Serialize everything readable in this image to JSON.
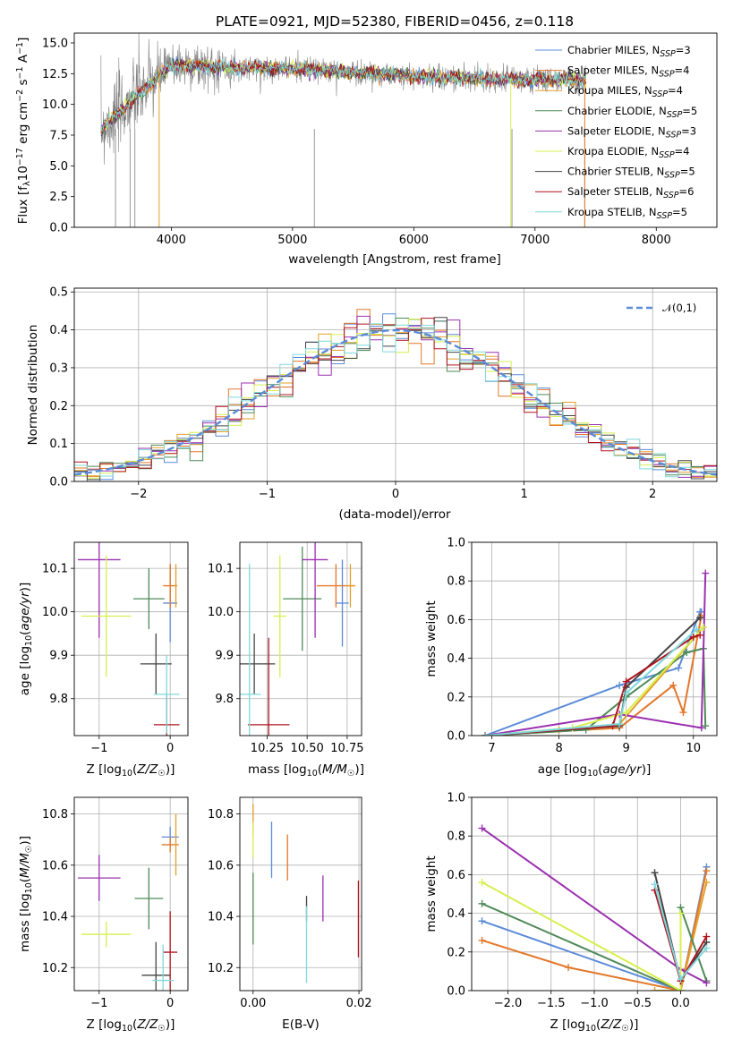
{
  "colors": {
    "chabrier_miles": "#5b8bd9",
    "salpeter_miles": "#e3772a",
    "kroupa_miles": "#e39f2a",
    "chabrier_elodie": "#4f8a58",
    "salpeter_elodie": "#9b30b0",
    "kroupa_elodie": "#d8ef4e",
    "chabrier_stelib": "#444444",
    "salpeter_stelib": "#b0141e",
    "kroupa_stelib": "#7fd8dc",
    "spec_gray": "#808080",
    "grid": "#b0b0b0",
    "normal": "#5b8bd9"
  },
  "chart_data": [
    {
      "id": "spectrum",
      "type": "line",
      "title": "PLATE=0921, MJD=52380, FIBERID=0456, z=0.118",
      "xlabel": "wavelength [Angstrom, rest frame]",
      "ylabel": "Flux [f_λ10⁻¹⁷ erg cm⁻² s⁻¹ A⁻¹]",
      "xlim": [
        3200,
        8500
      ],
      "ylim": [
        0,
        15.8
      ],
      "xticks": [
        4000,
        5000,
        6000,
        7000,
        8000
      ],
      "yticks": [
        "0.0",
        "2.5",
        "5.0",
        "7.5",
        "10.0",
        "12.5",
        "15.0"
      ],
      "grid": false,
      "legend_position": "right",
      "legend": [
        "Chabrier MILES, N_SSP=3",
        "Salpeter MILES, N_SSP=4",
        "Kroupa MILES, N_SSP=4",
        "Chabrier ELODIE, N_SSP=5",
        "Salpeter ELODIE, N_SSP=3",
        "Kroupa ELODIE, N_SSP=4",
        "Chabrier STELIB, N_SSP=5",
        "Salpeter STELIB, N_SSP=6",
        "Kroupa STELIB, N_SSP=5"
      ],
      "data_continuum": {
        "x": [
          3420,
          3700,
          4000,
          4500,
          5000,
          5500,
          6000,
          6500,
          7000,
          7400
        ],
        "y": [
          8.0,
          10.5,
          13.2,
          13.0,
          12.9,
          12.6,
          12.3,
          12.1,
          12.0,
          12.0
        ]
      }
    },
    {
      "id": "residual-histogram",
      "type": "line",
      "xlabel": "(data-model)/error",
      "ylabel": "Normed distribution",
      "xlim": [
        -2.5,
        2.5
      ],
      "ylim": [
        0,
        0.51
      ],
      "xticks": [
        "−2",
        "−1",
        "0",
        "1",
        "2"
      ],
      "yticks": [
        "0.0",
        "0.1",
        "0.2",
        "0.3",
        "0.4",
        "0.5"
      ],
      "grid": true,
      "legend": [
        "𝒩(0,1)"
      ],
      "legend_position": "top-right",
      "normal": {
        "mean": 0,
        "sigma": 1
      },
      "histogram_bins": [
        -2.5,
        2.5,
        0.1
      ],
      "series_values": [
        [
          0.02,
          0.02,
          0.02,
          0.03,
          0.04,
          0.06,
          0.05,
          0.08,
          0.08,
          0.07,
          0.1,
          0.13,
          0.12,
          0.13,
          0.12,
          0.15,
          0.18,
          0.19,
          0.21,
          0.23,
          0.27,
          0.26,
          0.3,
          0.29,
          0.34,
          0.33,
          0.35,
          0.36,
          0.38,
          0.37,
          0.37,
          0.38,
          0.39,
          0.41,
          0.4,
          0.39,
          0.46,
          0.48,
          0.43,
          0.49,
          0.4,
          0.38,
          0.36,
          0.37,
          0.33,
          0.32,
          0.34,
          0.3,
          0.31,
          0.28,
          0.25,
          0.24,
          0.21,
          0.2,
          0.19,
          0.17,
          0.16,
          0.14,
          0.12,
          0.11,
          0.1,
          0.09,
          0.07,
          0.07,
          0.06,
          0.05,
          0.04,
          0.03,
          0.04,
          0.03,
          0.03,
          0.02,
          0.02,
          0.02,
          0.02,
          0.01,
          0.01,
          0.01,
          0.01,
          0.01,
          0.01,
          0.01,
          0.01,
          0.01,
          0.01,
          0.01,
          0.01,
          0.01,
          0.01,
          0.01,
          0.01,
          0.01,
          0.01,
          0.01,
          0.01,
          0.01,
          0.01,
          0.01,
          0.01,
          0.01
        ]
      ]
    },
    {
      "id": "age-vs-Z",
      "type": "scatter",
      "xlabel": "Z [log₁₀(Z/Z☉)]",
      "ylabel": "age  [log₁₀(age/yr)]",
      "xlim": [
        -1.35,
        0.25
      ],
      "ylim": [
        9.715,
        10.16
      ],
      "xticks": [
        "−1",
        "0"
      ],
      "yticks": [
        "9.8",
        "9.9",
        "10.0",
        "10.1"
      ],
      "grid": true,
      "points": [
        {
          "model": "chabrier_miles",
          "x": 0.0,
          "xerr": 0.1,
          "y": 10.02,
          "yerr": 0.09
        },
        {
          "model": "salpeter_miles",
          "x": 0.0,
          "xerr": 0.1,
          "y": 10.06,
          "yerr": 0.05
        },
        {
          "model": "kroupa_miles",
          "x": 0.08,
          "xerr": 0.02,
          "y": 10.06,
          "yerr": 0.05
        },
        {
          "model": "chabrier_elodie",
          "x": -0.3,
          "xerr": 0.22,
          "y": 10.03,
          "yerr": 0.07
        },
        {
          "model": "salpeter_elodie",
          "x": -1.0,
          "xerr": 0.3,
          "y": 10.12,
          "yerr": 0.18
        },
        {
          "model": "kroupa_elodie",
          "x": -0.9,
          "xerr": 0.35,
          "y": 9.99,
          "yerr": 0.14
        },
        {
          "model": "chabrier_stelib",
          "x": -0.2,
          "xerr": 0.22,
          "y": 9.88,
          "yerr": 0.07
        },
        {
          "model": "salpeter_stelib",
          "x": -0.05,
          "xerr": 0.18,
          "y": 9.74,
          "yerr": 0.07
        },
        {
          "model": "kroupa_stelib",
          "x": -0.05,
          "xerr": 0.18,
          "y": 9.81,
          "yerr": 0.09
        }
      ]
    },
    {
      "id": "age-vs-mass",
      "type": "scatter",
      "xlabel": "mass [log₁₀(M/M☉)]",
      "ylabel": "",
      "xlim": [
        10.08,
        10.84
      ],
      "ylim": [
        9.715,
        10.16
      ],
      "xticks": [
        "10.25",
        "10.50",
        "10.75"
      ],
      "yticks": [
        "9.8",
        "9.9",
        "10.0",
        "10.1"
      ],
      "grid": true,
      "points": [
        {
          "model": "chabrier_miles",
          "x": 10.72,
          "xerr": 0.04,
          "y": 10.02,
          "yerr": 0.1
        },
        {
          "model": "salpeter_miles",
          "x": 10.68,
          "xerr": 0.12,
          "y": 10.06,
          "yerr": 0.05
        },
        {
          "model": "kroupa_miles",
          "x": 10.77,
          "xerr": 0.03,
          "y": 10.06,
          "yerr": 0.05
        },
        {
          "model": "chabrier_elodie",
          "x": 10.47,
          "xerr": 0.12,
          "y": 10.03,
          "yerr": 0.12
        },
        {
          "model": "salpeter_elodie",
          "x": 10.55,
          "xerr": 0.08,
          "y": 10.12,
          "yerr": 0.18
        },
        {
          "model": "kroupa_elodie",
          "x": 10.33,
          "xerr": 0.04,
          "y": 9.99,
          "yerr": 0.14
        },
        {
          "model": "chabrier_stelib",
          "x": 10.17,
          "xerr": 0.13,
          "y": 9.88,
          "yerr": 0.07
        },
        {
          "model": "salpeter_stelib",
          "x": 10.26,
          "xerr": 0.13,
          "y": 9.74,
          "yerr": 0.2
        },
        {
          "model": "kroupa_stelib",
          "x": 10.14,
          "xerr": 0.07,
          "y": 9.81,
          "yerr": 0.3
        }
      ]
    },
    {
      "id": "massweight-vs-age",
      "type": "line",
      "xlabel": "age  [log₁₀(age/yr)]",
      "ylabel": "mass weight",
      "xlim": [
        6.7,
        10.35
      ],
      "ylim": [
        0,
        1.0
      ],
      "xticks": [
        "7",
        "8",
        "9",
        "10"
      ],
      "yticks": [
        "0.0",
        "0.2",
        "0.4",
        "0.6",
        "0.8",
        "1.0"
      ],
      "grid": true,
      "series": [
        {
          "model": "chabrier_miles",
          "x": [
            6.9,
            8.9,
            9.78,
            10.1,
            10.12
          ],
          "y": [
            0.0,
            0.26,
            0.35,
            0.64,
            0.64
          ]
        },
        {
          "model": "salpeter_miles",
          "x": [
            6.9,
            8.9,
            9.7,
            9.85,
            10.12
          ],
          "y": [
            0.0,
            0.04,
            0.26,
            0.12,
            0.62
          ]
        },
        {
          "model": "kroupa_miles",
          "x": [
            6.9,
            8.0,
            8.9,
            10.15
          ],
          "y": [
            0.0,
            0.03,
            0.06,
            0.56
          ]
        },
        {
          "model": "chabrier_elodie",
          "x": [
            6.9,
            8.4,
            9.0,
            9.9,
            10.15,
            10.18
          ],
          "y": [
            0.0,
            0.03,
            0.2,
            0.43,
            0.45,
            0.05
          ]
        },
        {
          "model": "salpeter_elodie",
          "x": [
            6.9,
            8.9,
            10.12,
            10.18
          ],
          "y": [
            0.0,
            0.11,
            0.04,
            0.84
          ]
        },
        {
          "model": "kroupa_elodie",
          "x": [
            6.9,
            8.2,
            9.0,
            10.15
          ],
          "y": [
            0.0,
            0.04,
            0.12,
            0.56
          ]
        },
        {
          "model": "chabrier_stelib",
          "x": [
            6.9,
            8.9,
            9.0,
            10.1
          ],
          "y": [
            0.0,
            0.05,
            0.25,
            0.61
          ]
        },
        {
          "model": "salpeter_stelib",
          "x": [
            6.9,
            8.8,
            9.0,
            10.0,
            10.1
          ],
          "y": [
            0.0,
            0.05,
            0.28,
            0.51,
            0.52
          ]
        },
        {
          "model": "kroupa_stelib",
          "x": [
            6.9,
            8.9,
            9.0,
            10.05
          ],
          "y": [
            0.0,
            0.06,
            0.22,
            0.55
          ]
        }
      ]
    },
    {
      "id": "mass-vs-Z",
      "type": "scatter",
      "xlabel": "Z [log₁₀(Z/Z☉)]",
      "ylabel": "mass [log₁₀(M/M☉)]",
      "xlim": [
        -1.35,
        0.25
      ],
      "ylim": [
        10.11,
        10.865
      ],
      "xticks": [
        "−1",
        "0"
      ],
      "yticks": [
        "10.2",
        "10.4",
        "10.6",
        "10.8"
      ],
      "grid": true,
      "points": [
        {
          "model": "chabrier_miles",
          "x": 0.0,
          "xerr": 0.12,
          "y": 10.71,
          "yerr": 0.04
        },
        {
          "model": "salpeter_miles",
          "x": 0.0,
          "xerr": 0.12,
          "y": 10.68,
          "yerr": 0.03
        },
        {
          "model": "kroupa_miles",
          "x": 0.08,
          "xerr": 0.02,
          "y": 10.68,
          "yerr": 0.12
        },
        {
          "model": "chabrier_elodie",
          "x": -0.3,
          "xerr": 0.2,
          "y": 10.47,
          "yerr": 0.12
        },
        {
          "model": "salpeter_elodie",
          "x": -1.0,
          "xerr": 0.3,
          "y": 10.55,
          "yerr": 0.09
        },
        {
          "model": "kroupa_elodie",
          "x": -0.9,
          "xerr": 0.35,
          "y": 10.33,
          "yerr": 0.05
        },
        {
          "model": "chabrier_stelib",
          "x": -0.2,
          "xerr": 0.2,
          "y": 10.17,
          "yerr": 0.13
        },
        {
          "model": "salpeter_stelib",
          "x": 0.0,
          "xerr": 0.1,
          "y": 10.26,
          "yerr": 0.16
        },
        {
          "model": "kroupa_stelib",
          "x": -0.1,
          "xerr": 0.15,
          "y": 10.15,
          "yerr": 0.14
        }
      ]
    },
    {
      "id": "mass-vs-EBV",
      "type": "scatter",
      "xlabel": "E(B-V)",
      "ylabel": "",
      "xlim": [
        -0.0025,
        0.0205
      ],
      "ylim": [
        10.11,
        10.865
      ],
      "xticks": [
        "0.00",
        "0.02"
      ],
      "yticks": [
        "10.2",
        "10.4",
        "10.6",
        "10.8"
      ],
      "grid": true,
      "points": [
        {
          "model": "chabrier_miles",
          "x": 0.0035,
          "xerr": 0,
          "y": 10.66,
          "yerr": 0.11
        },
        {
          "model": "salpeter_miles",
          "x": 0.0065,
          "xerr": 0,
          "y": 10.63,
          "yerr": 0.09
        },
        {
          "model": "kroupa_miles",
          "x": 0.0,
          "xerr": 0,
          "y": 10.78,
          "yerr": 0.06
        },
        {
          "model": "chabrier_elodie",
          "x": 0.0,
          "xerr": 0,
          "y": 10.43,
          "yerr": 0.14
        },
        {
          "model": "salpeter_elodie",
          "x": 0.0132,
          "xerr": 0,
          "y": 10.47,
          "yerr": 0.09
        },
        {
          "model": "kroupa_elodie",
          "x": 0.0,
          "xerr": 0,
          "y": 10.7,
          "yerr": 0.07
        },
        {
          "model": "chabrier_stelib",
          "x": 0.0101,
          "xerr": 0,
          "y": 10.43,
          "yerr": 0.05
        },
        {
          "model": "salpeter_stelib",
          "x": 0.0199,
          "xerr": 0,
          "y": 10.39,
          "yerr": 0.15
        },
        {
          "model": "kroupa_stelib",
          "x": 0.0101,
          "xerr": 0,
          "y": 10.29,
          "yerr": 0.15
        }
      ]
    },
    {
      "id": "massweight-vs-Z",
      "type": "line",
      "xlabel": "Z [log₁₀(Z/Z☉)]",
      "ylabel": "mass weight",
      "xlim": [
        -2.42,
        0.42
      ],
      "ylim": [
        0,
        1.0
      ],
      "xticks": [
        "−2.0",
        "−1.5",
        "−1.0",
        "−0.5",
        "0.0"
      ],
      "yticks": [
        "0.0",
        "0.2",
        "0.4",
        "0.6",
        "0.8",
        "1.0"
      ],
      "grid": true,
      "series": [
        {
          "model": "chabrier_miles",
          "x": [
            -2.3,
            0.0,
            0.3
          ],
          "y": [
            0.36,
            0.0,
            0.64
          ]
        },
        {
          "model": "salpeter_miles",
          "x": [
            -2.3,
            -1.3,
            0.0,
            0.3
          ],
          "y": [
            0.26,
            0.12,
            0.0,
            0.62
          ]
        },
        {
          "model": "kroupa_miles",
          "x": [
            -0.3,
            0.0,
            0.3
          ],
          "y": [
            0.0,
            0.0,
            0.56
          ]
        },
        {
          "model": "chabrier_elodie",
          "x": [
            -2.3,
            0.0,
            0.0,
            0.3
          ],
          "y": [
            0.45,
            0.0,
            0.43,
            0.05
          ]
        },
        {
          "model": "salpeter_elodie",
          "x": [
            -2.3,
            0.0,
            0.3
          ],
          "y": [
            0.84,
            0.11,
            0.04
          ]
        },
        {
          "model": "kroupa_elodie",
          "x": [
            -2.3,
            0.0,
            0.0
          ],
          "y": [
            0.56,
            0.0,
            0.4
          ]
        },
        {
          "model": "chabrier_stelib",
          "x": [
            -0.3,
            0.0,
            0.3
          ],
          "y": [
            0.61,
            0.05,
            0.25
          ]
        },
        {
          "model": "salpeter_stelib",
          "x": [
            -0.3,
            0.0,
            0.3
          ],
          "y": [
            0.52,
            0.05,
            0.28
          ]
        },
        {
          "model": "kroupa_stelib",
          "x": [
            -0.3,
            0.0,
            0.3
          ],
          "y": [
            0.55,
            0.06,
            0.22
          ]
        }
      ]
    }
  ]
}
